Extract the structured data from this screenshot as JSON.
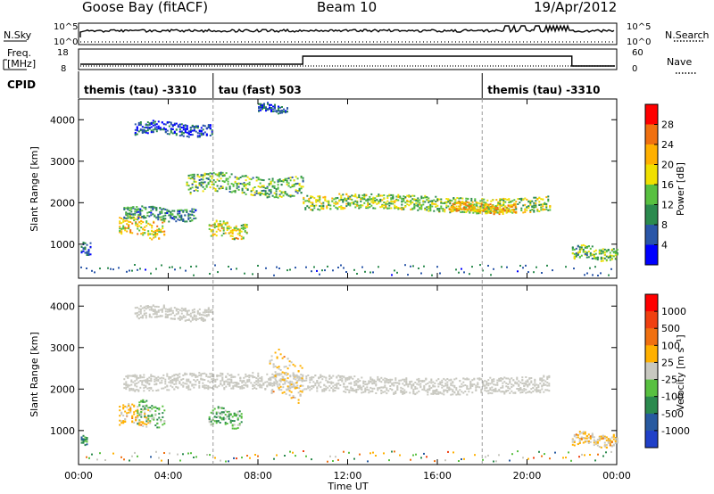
{
  "header": {
    "station": "Goose Bay (fitACF)",
    "beam": "Beam 10",
    "date": "19/Apr/2012"
  },
  "noise_panel": {
    "left_label": "N.Sky",
    "left_ticks": [
      "10^5",
      "10^0"
    ],
    "right_label": "N.Search",
    "right_ticks": [
      "10^5",
      "10^0"
    ]
  },
  "freq_panel": {
    "left_label_1": "Freq.",
    "left_label_2": "[MHz]",
    "left_ticks": [
      "18",
      "8"
    ],
    "right_label": "Nave",
    "right_ticks": [
      "60",
      "0"
    ]
  },
  "cpid": {
    "label": "CPID",
    "segments": [
      {
        "text": "themis (tau) -3310",
        "start_hour": 0
      },
      {
        "text": "tau (fast) 503",
        "start_hour": 6
      },
      {
        "text": "themis (tau) -3310",
        "start_hour": 18
      }
    ]
  },
  "x_axis": {
    "label": "Time UT",
    "ticks": [
      "00:00",
      "04:00",
      "08:00",
      "12:00",
      "16:00",
      "20:00",
      "00:00"
    ],
    "tick_hours": [
      0,
      4,
      8,
      12,
      16,
      20,
      24
    ],
    "range": [
      0,
      24
    ]
  },
  "ylabel": "Slant Range [km]",
  "y_ticks": [
    "4000",
    "3000",
    "2000",
    "1000"
  ],
  "colorbars": {
    "power": {
      "label": "Power [dB]",
      "ticks": [
        "28",
        "24",
        "20",
        "16",
        "12",
        "8",
        "4"
      ],
      "colors": [
        "#0000ff",
        "#2a56a8",
        "#2b8a4e",
        "#58c040",
        "#f0e000",
        "#ffb000",
        "#f07010",
        "#ff0000"
      ]
    },
    "velocity": {
      "label": "Velocity [m s⁻¹]",
      "ticks": [
        "1000",
        "500",
        "100",
        "25",
        "-25",
        "-100",
        "-500",
        "-1000"
      ],
      "colors": [
        "#2040c8",
        "#285aa0",
        "#2b8a4e",
        "#58c040",
        "#c8c8c0",
        "#ffb000",
        "#f07010",
        "#f04010",
        "#ff0000"
      ]
    }
  },
  "chart_data": [
    {
      "type": "heatmap",
      "title": "Power [dB]",
      "xlabel": "Time UT",
      "ylabel": "Slant Range [km]",
      "xlim": [
        0,
        24
      ],
      "ylim": [
        180,
        4500
      ],
      "value_range": [
        0,
        30
      ],
      "features": [
        {
          "hour_start": 0.1,
          "hour_end": 0.5,
          "range_center": 900,
          "range_half_width": 150,
          "value": 6
        },
        {
          "hour_start": 1.8,
          "hour_end": 3.8,
          "range_center": 1430,
          "range_half_width": 230,
          "value": 18
        },
        {
          "hour_start": 2.0,
          "hour_end": 5.2,
          "range_center": 1750,
          "range_half_width": 150,
          "value": 9
        },
        {
          "hour_start": 2.5,
          "hour_end": 6.0,
          "range_center": 3800,
          "range_half_width": 150,
          "value": 5
        },
        {
          "hour_start": 5.8,
          "hour_end": 7.5,
          "range_center": 1350,
          "range_half_width": 180,
          "value": 17
        },
        {
          "hour_start": 4.8,
          "hour_end": 10.0,
          "range_center": 2450,
          "range_half_width": 230,
          "value": 12
        },
        {
          "hour_start": 8.0,
          "hour_end": 9.3,
          "range_center": 4300,
          "range_half_width": 100,
          "value": 5
        },
        {
          "hour_start": 10.0,
          "hour_end": 21.0,
          "range_center": 2000,
          "range_half_width": 180,
          "value": 14
        },
        {
          "hour_start": 16.5,
          "hour_end": 19.5,
          "range_center": 1900,
          "range_half_width": 120,
          "value": 20
        },
        {
          "hour_start": 22.0,
          "hour_end": 24.0,
          "range_center": 800,
          "range_half_width": 150,
          "value": 12
        }
      ]
    },
    {
      "type": "heatmap",
      "title": "Velocity [m s⁻¹]",
      "xlabel": "Time UT",
      "ylabel": "Slant Range [km]",
      "xlim": [
        0,
        24
      ],
      "ylim": [
        180,
        4500
      ],
      "value_range": [
        -1000,
        1000
      ],
      "features": [
        {
          "hour_start": 0.1,
          "hour_end": 0.4,
          "range_center": 800,
          "range_half_width": 120,
          "value": -400
        },
        {
          "hour_start": 1.8,
          "hour_end": 3.2,
          "range_center": 1380,
          "range_half_width": 230,
          "value": 150
        },
        {
          "hour_start": 2.6,
          "hour_end": 3.8,
          "range_center": 1420,
          "range_half_width": 250,
          "value": -250
        },
        {
          "hour_start": 5.8,
          "hour_end": 7.3,
          "range_center": 1330,
          "range_half_width": 200,
          "value": -250
        },
        {
          "hour_start": 2.0,
          "hour_end": 21.0,
          "range_center": 2150,
          "range_half_width": 200,
          "value": 0
        },
        {
          "hour_start": 2.5,
          "hour_end": 6.0,
          "range_center": 3850,
          "range_half_width": 150,
          "value": 0
        },
        {
          "hour_start": 8.5,
          "hour_end": 10.0,
          "range_center": 2300,
          "range_half_width": 500,
          "value": 120
        },
        {
          "hour_start": 22.0,
          "hour_end": 24.0,
          "range_center": 800,
          "range_half_width": 150,
          "value": 150
        }
      ]
    }
  ]
}
